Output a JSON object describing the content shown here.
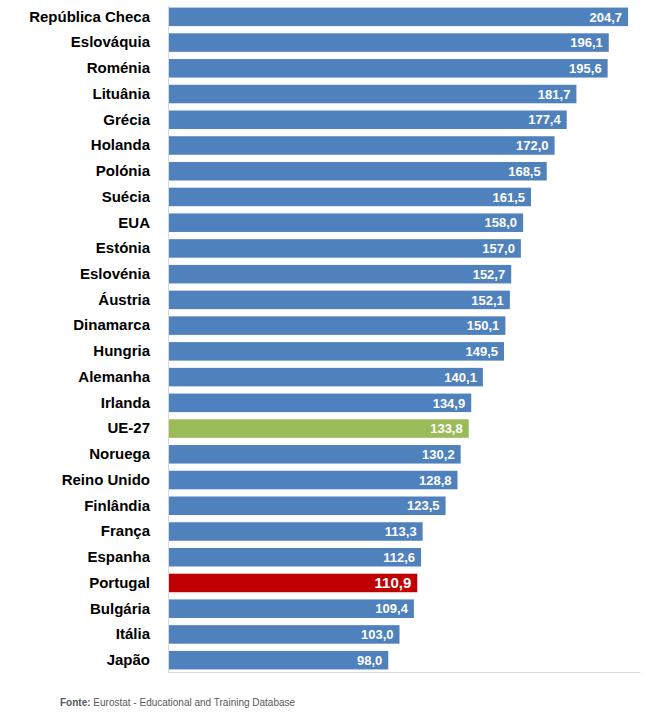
{
  "chart_data": {
    "type": "bar",
    "orientation": "horizontal",
    "categories": [
      "República Checa",
      "Eslováquia",
      "Roménia",
      "Lituânia",
      "Grécia",
      "Holanda",
      "Polónia",
      "Suécia",
      "EUA",
      "Estónia",
      "Eslovénia",
      "Áustria",
      "Dinamarca",
      "Hungria",
      "Alemanha",
      "Irlanda",
      "UE-27",
      "Noruega",
      "Reino Unido",
      "Finlândia",
      "França",
      "Espanha",
      "Portugal",
      "Bulgária",
      "Itália",
      "Japão"
    ],
    "values": [
      204.7,
      196.1,
      195.6,
      181.7,
      177.4,
      172.0,
      168.5,
      161.5,
      158.0,
      157.0,
      152.7,
      152.1,
      150.1,
      149.5,
      140.1,
      134.9,
      133.8,
      130.2,
      128.8,
      123.5,
      113.3,
      112.6,
      110.9,
      109.4,
      103.0,
      98.0
    ],
    "value_labels": [
      "204,7",
      "196,1",
      "195,6",
      "181,7",
      "177,4",
      "172,0",
      "168,5",
      "161,5",
      "158,0",
      "157,0",
      "152,7",
      "152,1",
      "150,1",
      "149,5",
      "140,1",
      "134,9",
      "133,8",
      "130,2",
      "128,8",
      "123,5",
      "113,3",
      "112,6",
      "110,9",
      "109,4",
      "103,0",
      "98,0"
    ],
    "colors": [
      "#4f81bd",
      "#4f81bd",
      "#4f81bd",
      "#4f81bd",
      "#4f81bd",
      "#4f81bd",
      "#4f81bd",
      "#4f81bd",
      "#4f81bd",
      "#4f81bd",
      "#4f81bd",
      "#4f81bd",
      "#4f81bd",
      "#4f81bd",
      "#4f81bd",
      "#4f81bd",
      "#9bbb59",
      "#4f81bd",
      "#4f81bd",
      "#4f81bd",
      "#4f81bd",
      "#4f81bd",
      "#c00000",
      "#4f81bd",
      "#4f81bd",
      "#4f81bd"
    ],
    "xlim": [
      0,
      210
    ],
    "xticks": [],
    "data_labels": true,
    "tick_labels": "y",
    "grid": false,
    "annotations": [
      "Fonte: Eurostat - Educational and Training Database"
    ]
  }
}
